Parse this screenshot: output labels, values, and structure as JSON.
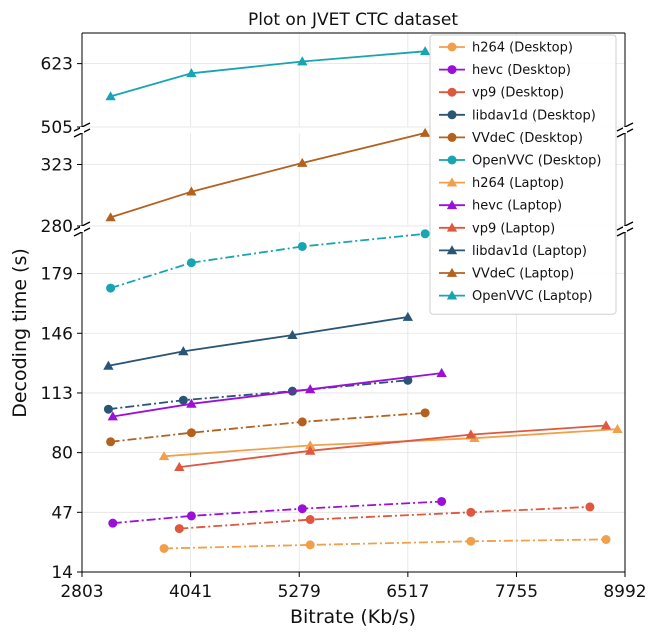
{
  "chart_data": {
    "type": "line",
    "title": "Plot on JVET CTC dataset",
    "xlabel": "Bitrate (Kb/s)",
    "ylabel": "Decoding time (s)",
    "xlim": [
      2803,
      8992
    ],
    "xticks": [
      2803,
      4041,
      5279,
      6517,
      7755,
      8992
    ],
    "broken_y_axis": true,
    "y_segments": [
      {
        "ylim": [
          505,
          680
        ],
        "ticks": [
          505,
          623
        ]
      },
      {
        "ylim": [
          280,
          345
        ],
        "ticks": [
          280,
          323
        ]
      },
      {
        "ylim": [
          14,
          202
        ],
        "ticks": [
          14,
          47,
          80,
          113,
          146,
          179
        ]
      }
    ],
    "grid": true,
    "legend_position": "top-right",
    "colors": {
      "h264": "#f0a04b",
      "hevc": "#9b10d8",
      "vp9": "#e0573f",
      "libdav1d": "#2a5575",
      "VVdeC": "#b4601f",
      "OpenVVC": "#18a4b0"
    },
    "series": [
      {
        "name": "h264 (Desktop)",
        "codec": "h264",
        "marker": "circle",
        "style": "dashdot",
        "points": [
          [
            3738,
            27
          ],
          [
            5404,
            29
          ],
          [
            7235,
            31
          ],
          [
            8776,
            32
          ]
        ]
      },
      {
        "name": "hevc (Desktop)",
        "codec": "hevc",
        "marker": "circle",
        "style": "dashdot",
        "points": [
          [
            3154,
            41
          ],
          [
            4050,
            45
          ],
          [
            5314,
            49
          ],
          [
            6902,
            53
          ]
        ]
      },
      {
        "name": "vp9 (Desktop)",
        "codec": "vp9",
        "marker": "circle",
        "style": "dashdot",
        "points": [
          [
            3912,
            38
          ],
          [
            5404,
            43
          ],
          [
            7235,
            47
          ],
          [
            8592,
            50
          ]
        ]
      },
      {
        "name": "libdav1d (Desktop)",
        "codec": "libdav1d",
        "marker": "circle",
        "style": "dashdot",
        "points": [
          [
            3104,
            104
          ],
          [
            3958,
            109
          ],
          [
            5201,
            114
          ],
          [
            6517,
            120
          ]
        ]
      },
      {
        "name": "VVdeC (Desktop)",
        "codec": "VVdeC",
        "marker": "circle",
        "style": "dashdot",
        "points": [
          [
            3129,
            86
          ],
          [
            4050,
            91
          ],
          [
            5314,
            97
          ],
          [
            6714,
            102
          ]
        ]
      },
      {
        "name": "OpenVVC (Desktop)",
        "codec": "OpenVVC",
        "marker": "circle",
        "style": "dashdot",
        "points": [
          [
            3129,
            171
          ],
          [
            4050,
            185
          ],
          [
            5314,
            194
          ],
          [
            6714,
            201
          ]
        ]
      },
      {
        "name": "h264 (Laptop)",
        "codec": "h264",
        "marker": "triangle",
        "style": "solid",
        "points": [
          [
            3738,
            78
          ],
          [
            5404,
            84
          ],
          [
            7276,
            88
          ],
          [
            8906,
            93
          ]
        ]
      },
      {
        "name": "hevc (Laptop)",
        "codec": "hevc",
        "marker": "triangle",
        "style": "solid",
        "points": [
          [
            3154,
            100
          ],
          [
            4050,
            107
          ],
          [
            5404,
            115
          ],
          [
            6902,
            124
          ]
        ]
      },
      {
        "name": "vp9 (Laptop)",
        "codec": "vp9",
        "marker": "triangle",
        "style": "solid",
        "points": [
          [
            3912,
            72
          ],
          [
            5404,
            81
          ],
          [
            7235,
            90
          ],
          [
            8776,
            95
          ]
        ]
      },
      {
        "name": "libdav1d (Laptop)",
        "codec": "libdav1d",
        "marker": "triangle",
        "style": "solid",
        "points": [
          [
            3104,
            128
          ],
          [
            3958,
            136
          ],
          [
            5201,
            145
          ],
          [
            6517,
            155
          ]
        ]
      },
      {
        "name": "VVdeC (Laptop)",
        "codec": "VVdeC",
        "marker": "triangle",
        "style": "solid",
        "points": [
          [
            3129,
            286
          ],
          [
            4050,
            304
          ],
          [
            5314,
            324
          ],
          [
            6714,
            345
          ]
        ]
      },
      {
        "name": "OpenVVC (Laptop)",
        "codec": "OpenVVC",
        "marker": "triangle",
        "style": "solid",
        "points": [
          [
            3129,
            562
          ],
          [
            4050,
            605
          ],
          [
            5314,
            627
          ],
          [
            6714,
            646
          ]
        ]
      }
    ]
  }
}
